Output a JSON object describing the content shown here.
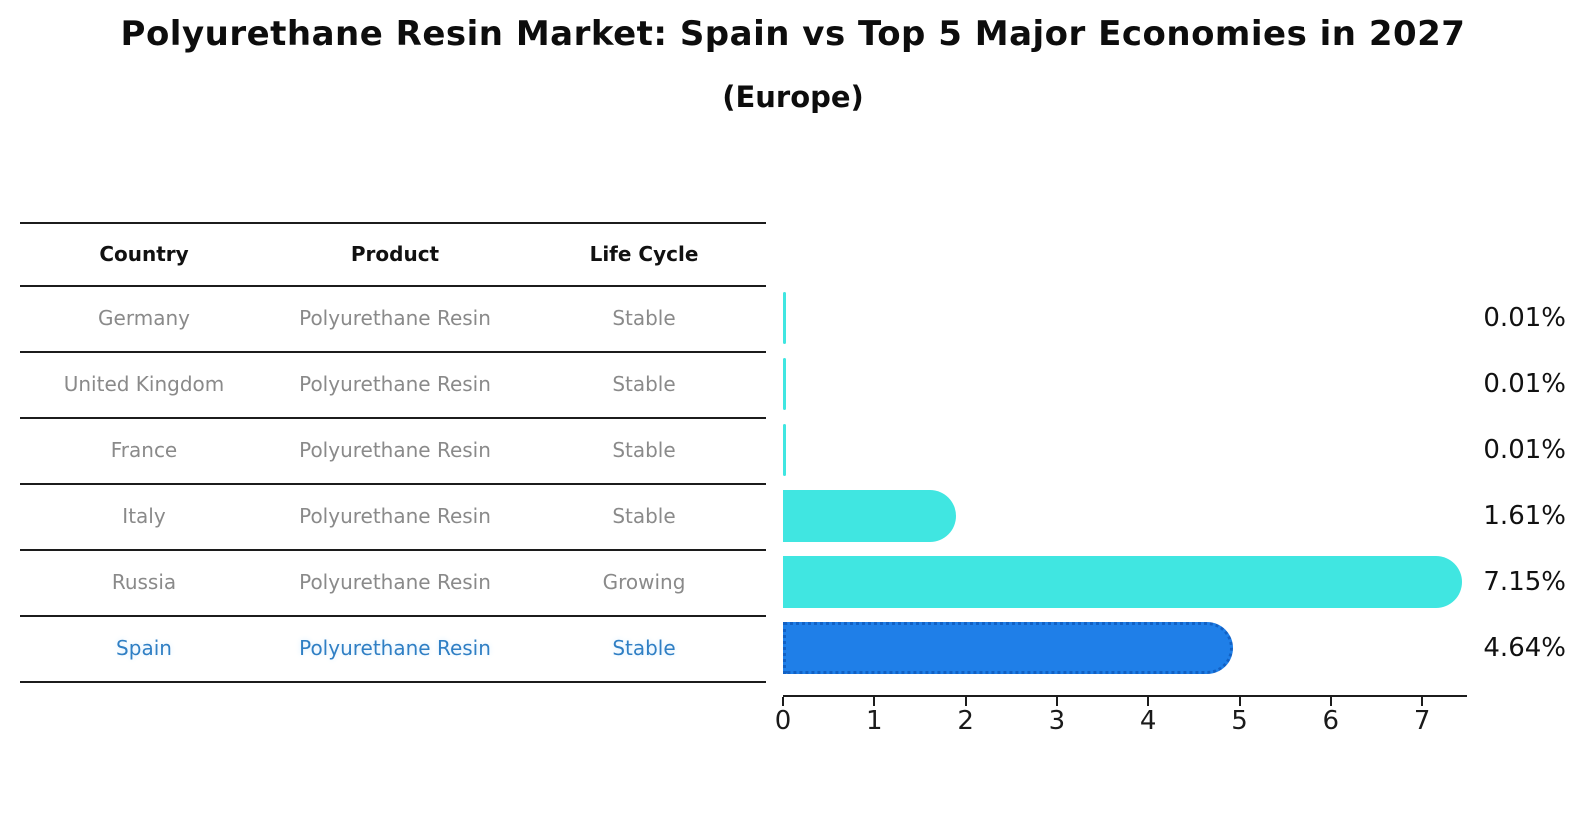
{
  "title": "Polyurethane Resin Market: Spain vs Top 5 Major Economies in 2027",
  "subtitle": "(Europe)",
  "table": {
    "headers": [
      "Country",
      "Product",
      "Life Cycle"
    ],
    "rows": [
      {
        "country": "Germany",
        "product": "Polyurethane Resin",
        "life_cycle": "Stable",
        "highlighted": false
      },
      {
        "country": "United Kingdom",
        "product": "Polyurethane Resin",
        "life_cycle": "Stable",
        "highlighted": false
      },
      {
        "country": "France",
        "product": "Polyurethane Resin",
        "life_cycle": "Stable",
        "highlighted": false
      },
      {
        "country": "Italy",
        "product": "Polyurethane Resin",
        "life_cycle": "Stable",
        "highlighted": false
      },
      {
        "country": "Russia",
        "product": "Polyurethane Resin",
        "life_cycle": "Growing",
        "highlighted": false
      },
      {
        "country": "Spain",
        "product": "Polyurethane Resin",
        "life_cycle": "Stable",
        "highlighted": true
      }
    ]
  },
  "chart_data": {
    "type": "bar",
    "orientation": "horizontal",
    "title": "Polyurethane Resin Market: Spain vs Top 5 Major Economies in 2027",
    "subtitle": "(Europe)",
    "categories": [
      "Germany",
      "United Kingdom",
      "France",
      "Italy",
      "Russia",
      "Spain"
    ],
    "values": [
      0.01,
      0.01,
      0.01,
      1.61,
      7.15,
      4.64
    ],
    "value_labels": [
      "0.01%",
      "0.01%",
      "0.01%",
      "1.61%",
      "7.15%",
      "4.64%"
    ],
    "xlim": [
      0,
      7.5
    ],
    "xticks": [
      0,
      1,
      2,
      3,
      4,
      5,
      6,
      7
    ],
    "grid": false,
    "legend": "none",
    "highlight_index": 5,
    "bar_color": "#40e6e1",
    "highlight_color": "#1f7fe8",
    "highlight_border_color": "#1261c4"
  },
  "colors": {
    "row_text": "#8a8a8a",
    "highlight_text": "#2f7fc4",
    "header_text": "#111111",
    "axis_text": "#1a1a1a",
    "line": "#1c1c1c"
  }
}
